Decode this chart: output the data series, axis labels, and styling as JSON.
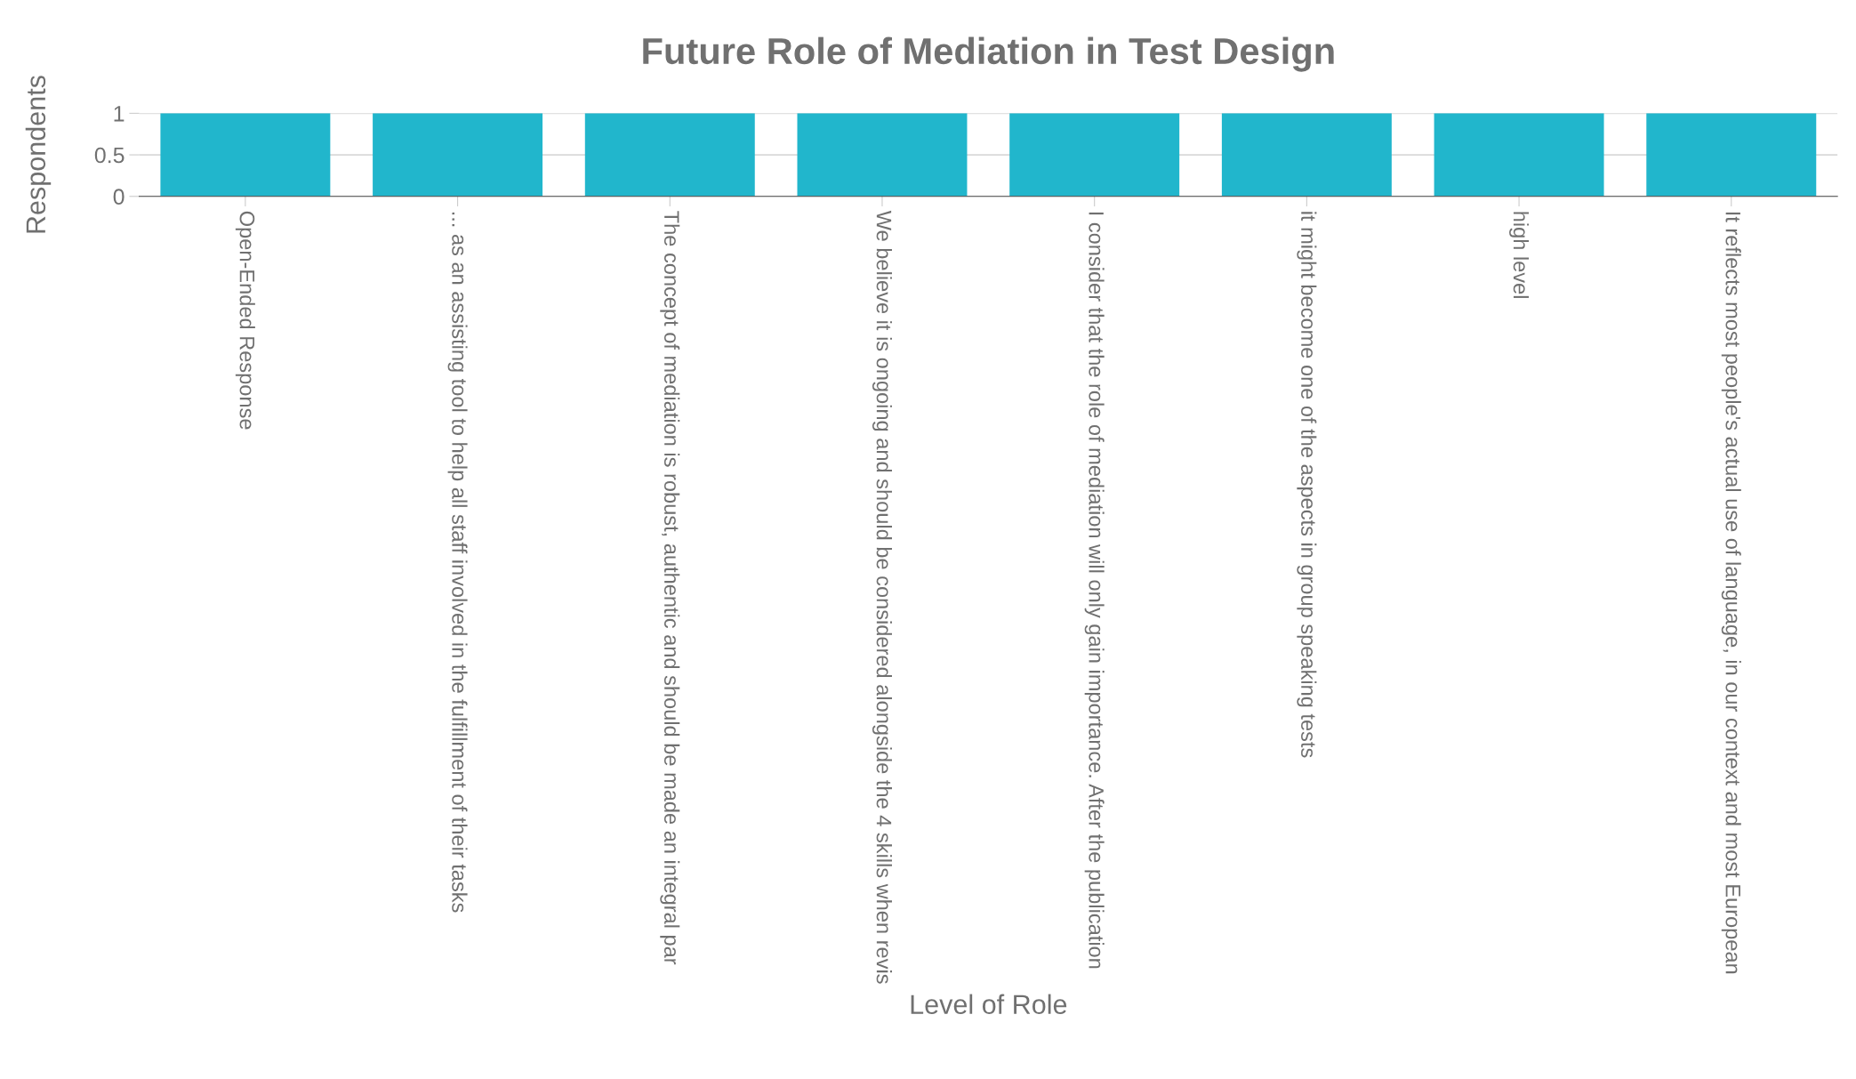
{
  "chart_data": {
    "type": "bar",
    "title": "Future Role of Mediation in Test Design",
    "xlabel": "Level of Role",
    "ylabel": "Respondents",
    "categories": [
      "Open-Ended Response",
      "... as an assisting tool to help all staff involved in the fulfillment of their tasks",
      "The concept of mediation is robust, authentic and should be made an integral par",
      "We believe it is ongoing and should be considered alongside the 4 skills when revis",
      "I consider that the role of mediation will only gain importance. After the publication",
      "it might become one of the aspects in group speaking tests",
      "high level",
      "It reflects most people's actual use of language, in our context and most European"
    ],
    "values": [
      1,
      1,
      1,
      1,
      1,
      1,
      1,
      1
    ],
    "color": "#21b6cc",
    "ylim": [
      0,
      1
    ],
    "yticks": [
      0,
      0.5,
      1
    ],
    "grid": "y"
  }
}
